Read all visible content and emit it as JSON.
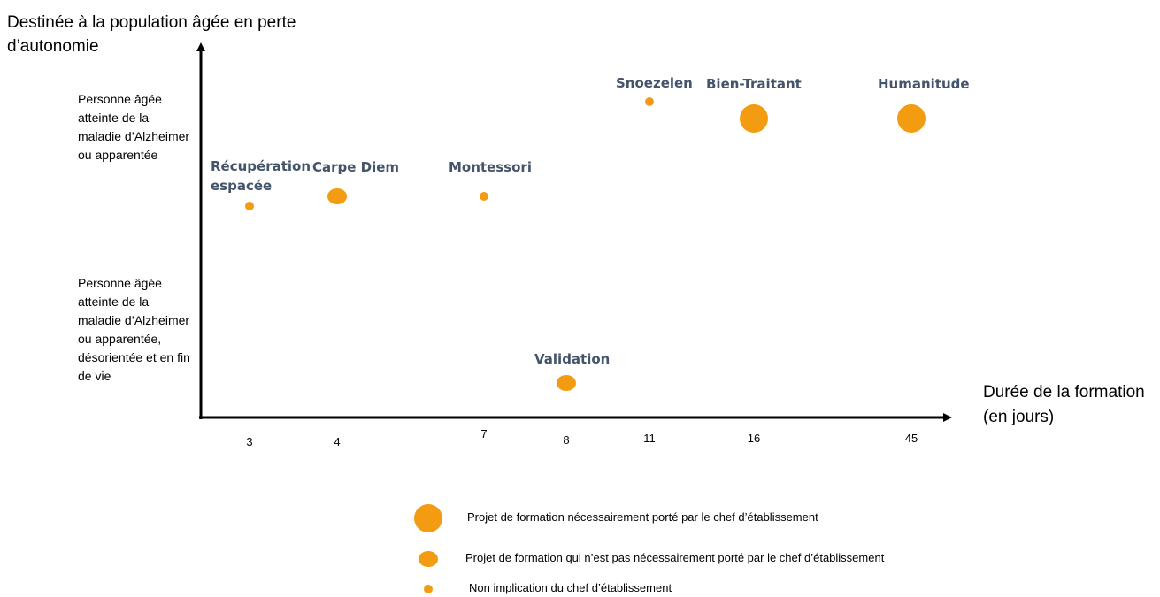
{
  "chart_data": {
    "type": "scatter",
    "ylabel": "Destinée à la population âgée en perte d’autonomie",
    "xlabel": "Durée de la formation (en jours)",
    "y_categories": [
      "Personne âgée atteinte de la maladie d’Alzheimer ou apparentée",
      "Personne âgée atteinte de la maladie d’Alzheimer ou apparentée, désorientée et en fin de vie"
    ],
    "x_ticks": [
      "3",
      "4",
      "7",
      "8",
      "11",
      "16",
      "45"
    ],
    "points": [
      {
        "label": "Récupération espacée",
        "x": 3,
        "y_category": 0,
        "size": "small"
      },
      {
        "label": "Carpe Diem",
        "x": 4,
        "y_category": 0,
        "size": "medium"
      },
      {
        "label": "Montessori",
        "x": 7,
        "y_category": 0,
        "size": "small"
      },
      {
        "label": "Validation",
        "x": 8,
        "y_category": 1,
        "size": "medium"
      },
      {
        "label": "Snoezelen",
        "x": 11,
        "y_category": 0,
        "size": "small"
      },
      {
        "label": "Bien-Traitant",
        "x": 16,
        "y_category": 0,
        "size": "large"
      },
      {
        "label": "Humanitude",
        "x": 45,
        "y_category": 0,
        "size": "large"
      }
    ],
    "legend": [
      {
        "size": "large",
        "text": "Projet de formation nécessairement porté par le chef d’établissement"
      },
      {
        "size": "medium",
        "text": "Projet de formation qui n’est pas nécessairement porté par le chef d’établissement"
      },
      {
        "size": "small",
        "text": "Non implication du chef d’établissement"
      }
    ],
    "marker_color": "#f39c12",
    "label_color": "#44546a"
  }
}
